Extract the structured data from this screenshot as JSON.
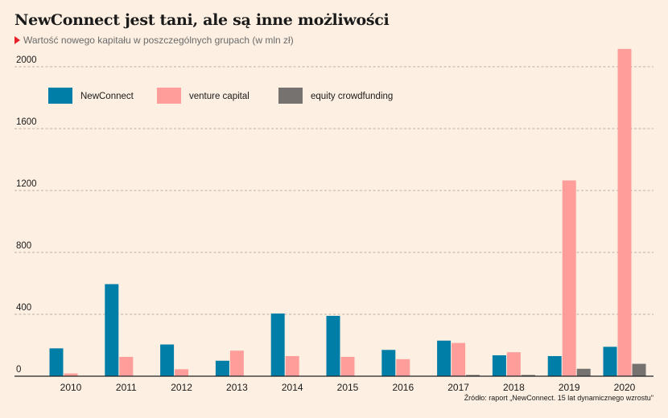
{
  "title": "NewConnect jest tani, ale są inne możliwości",
  "subtitle": "Wartość nowego kapitału w poszczególnych grupach (w mln zł)",
  "source": "Źródło: raport „NewConnect. 15 lat dynamicznego wzrostu\"",
  "colors": {
    "newconnect": "#007ea7",
    "venture": "#ff9d9b",
    "crowdfunding": "#757270",
    "grid": "#a09a94",
    "text": "#1a1a1a"
  },
  "chart_data": {
    "type": "bar",
    "categories": [
      "2010",
      "2011",
      "2012",
      "2013",
      "2014",
      "2015",
      "2016",
      "2017",
      "2018",
      "2019",
      "2020"
    ],
    "series": [
      {
        "name": "NewConnect",
        "values": [
          180,
          595,
          205,
          100,
          405,
          390,
          170,
          230,
          135,
          130,
          190
        ]
      },
      {
        "name": "venture capital",
        "values": [
          18,
          125,
          45,
          165,
          130,
          125,
          110,
          215,
          155,
          1265,
          2115
        ]
      },
      {
        "name": "equity crowdfunding",
        "values": [
          0,
          0,
          0,
          0,
          0,
          0,
          0,
          8,
          8,
          48,
          80
        ]
      }
    ],
    "yticks": [
      0,
      400,
      800,
      1200,
      1600,
      2000
    ],
    "ylim": [
      0,
      2150
    ],
    "grid": true,
    "legend": "top-left"
  }
}
